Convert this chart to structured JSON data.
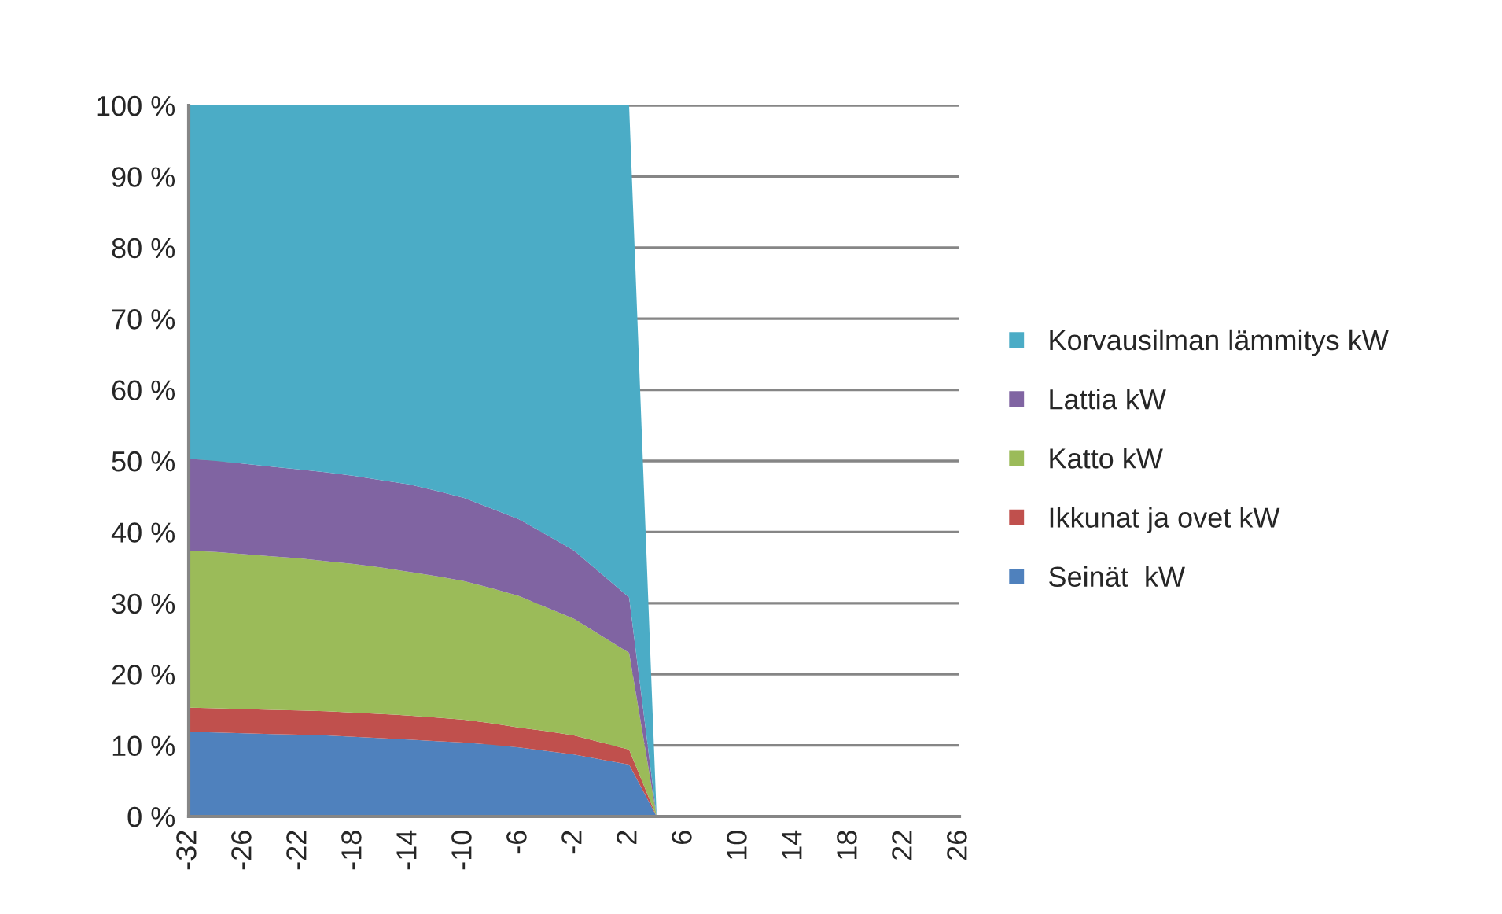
{
  "chart_data": {
    "type": "area",
    "stacked": true,
    "categories": [
      "-32",
      null,
      "-26",
      null,
      "-22",
      null,
      "-18",
      null,
      "-14",
      null,
      "-10",
      null,
      "-6",
      null,
      "-2",
      null,
      "2",
      null,
      "6",
      null,
      "10",
      null,
      "14",
      null,
      "18",
      null,
      "22",
      null,
      "26"
    ],
    "series": [
      {
        "name": "Seinät  kW",
        "color": "#4f81bd",
        "values": [
          11.9,
          11.8,
          11.7,
          11.6,
          11.5,
          11.4,
          11.2,
          11.0,
          10.8,
          10.6,
          10.4,
          10.1,
          9.7,
          9.2,
          8.7,
          8.0,
          7.3,
          0,
          0,
          0,
          0,
          0,
          0,
          0,
          0,
          0,
          0,
          0,
          0
        ]
      },
      {
        "name": "Ikkunat ja ovet kW",
        "color": "#c0504d",
        "values": [
          3.4,
          3.4,
          3.4,
          3.4,
          3.4,
          3.4,
          3.4,
          3.4,
          3.4,
          3.3,
          3.2,
          3.0,
          2.8,
          2.8,
          2.7,
          2.4,
          2.1,
          0,
          0,
          0,
          0,
          0,
          0,
          0,
          0,
          0,
          0,
          0,
          0
        ]
      },
      {
        "name": "Katto kW",
        "color": "#9bbb59",
        "values": [
          22.1,
          22.0,
          21.8,
          21.6,
          21.4,
          21.1,
          20.9,
          20.6,
          20.2,
          19.9,
          19.5,
          19.0,
          18.5,
          17.4,
          16.4,
          15.0,
          13.6,
          0,
          0,
          0,
          0,
          0,
          0,
          0,
          0,
          0,
          0,
          0,
          0
        ]
      },
      {
        "name": "Lattia kW",
        "color": "#8064a2",
        "values": [
          12.9,
          12.8,
          12.7,
          12.6,
          12.5,
          12.5,
          12.4,
          12.3,
          12.3,
          12.0,
          11.7,
          11.2,
          10.8,
          10.2,
          9.6,
          8.7,
          7.8,
          0,
          0,
          0,
          0,
          0,
          0,
          0,
          0,
          0,
          0,
          0,
          0
        ]
      },
      {
        "name": "Korvausilman lämmitys kW",
        "color": "#4bacc6",
        "values": [
          49.7,
          50.0,
          50.4,
          50.8,
          51.2,
          51.6,
          52.1,
          52.7,
          53.3,
          54.2,
          55.2,
          56.7,
          58.2,
          60.4,
          62.6,
          65.9,
          69.2,
          0,
          0,
          0,
          0,
          0,
          0,
          0,
          0,
          0,
          0,
          0,
          0
        ]
      }
    ],
    "ylim": [
      0,
      100
    ],
    "yticks": [
      {
        "value": 0,
        "label": "0 %"
      },
      {
        "value": 10,
        "label": "10 %"
      },
      {
        "value": 20,
        "label": "20 %"
      },
      {
        "value": 30,
        "label": "30 %"
      },
      {
        "value": 40,
        "label": "40 %"
      },
      {
        "value": 50,
        "label": "50 %"
      },
      {
        "value": 60,
        "label": "60 %"
      },
      {
        "value": 70,
        "label": "70 %"
      },
      {
        "value": 80,
        "label": "80 %"
      },
      {
        "value": 90,
        "label": "90 %"
      },
      {
        "value": 100,
        "label": "100 %"
      }
    ],
    "grid": "y",
    "legend": "right"
  }
}
